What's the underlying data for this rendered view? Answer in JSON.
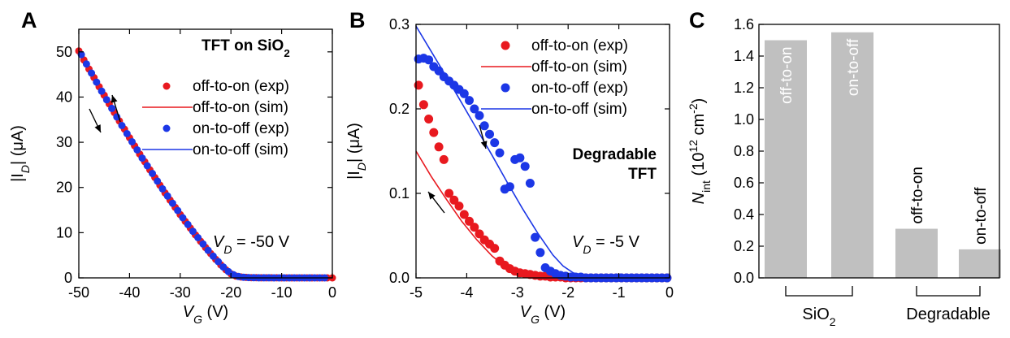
{
  "panel_labels": [
    "A",
    "B",
    "C"
  ],
  "chart_data": [
    {
      "type": "scatter",
      "panel": "A",
      "title_main": "TFT on SiO",
      "title_sub": "2",
      "xlabel_main": "V",
      "xlabel_sub": "G",
      "xlabel_unit": " (V)",
      "ylabel_main": "|I",
      "ylabel_sub": "D",
      "ylabel_unit": "| (μA)",
      "xlim": [
        -50,
        0
      ],
      "ylim": [
        0,
        55
      ],
      "xticks": [
        -50,
        -40,
        -30,
        -20,
        -10,
        0
      ],
      "yticks": [
        0,
        10,
        20,
        30,
        40,
        50
      ],
      "xtick_labels": [
        "-50",
        "-40",
        "-30",
        "-20",
        "-10",
        "0"
      ],
      "ytick_labels": [
        "0",
        "10",
        "20",
        "30",
        "40",
        "50"
      ],
      "annotation_main": "V",
      "annotation_sub": "D",
      "annotation_value": " = -50 V",
      "legend_position": "right",
      "series": [
        {
          "name": "off-to-on (exp)",
          "kind": "points",
          "color": "#e8191f",
          "x": [
            -50,
            -49,
            -48,
            -47,
            -46,
            -45,
            -44,
            -43,
            -42,
            -41,
            -40,
            -39,
            -38,
            -37,
            -36,
            -35,
            -34,
            -33,
            -32,
            -31,
            -30,
            -29,
            -28,
            -27,
            -26,
            -25,
            -24,
            -23,
            -22,
            -21,
            -20,
            -19,
            -18,
            -17,
            -16,
            -15,
            -14,
            -13,
            -12,
            -11,
            -10,
            -9,
            -8,
            -7,
            -6,
            -5,
            -4,
            -3,
            -2,
            -1,
            0
          ],
          "y": [
            50.2,
            48.2,
            46.2,
            44.3,
            42.3,
            40.4,
            38.5,
            36.6,
            34.7,
            32.9,
            31.0,
            29.2,
            27.4,
            25.7,
            23.9,
            22.2,
            20.5,
            18.8,
            17.2,
            15.6,
            14.0,
            12.5,
            11.0,
            9.5,
            8.1,
            6.7,
            5.4,
            4.1,
            2.9,
            1.8,
            0.9,
            0.4,
            0.2,
            0.1,
            0.05,
            0.03,
            0.02,
            0.01,
            0.01,
            0.01,
            0,
            0,
            0,
            0,
            0,
            0,
            0,
            0,
            0,
            0,
            0
          ]
        },
        {
          "name": "off-to-on (sim)",
          "kind": "line",
          "color": "#e8191f",
          "x": [
            -50,
            -47,
            -44,
            -41,
            -38,
            -35,
            -32,
            -29,
            -26,
            -23,
            -21,
            -20,
            -19,
            -18,
            -15,
            -10,
            -5,
            0
          ],
          "y": [
            50.0,
            44.2,
            38.4,
            32.8,
            27.3,
            22.1,
            17.1,
            12.4,
            8.0,
            4.0,
            1.9,
            1.0,
            0.45,
            0.15,
            0.02,
            0,
            0,
            0
          ]
        },
        {
          "name": "on-to-off (exp)",
          "kind": "points",
          "color": "#1c37e6",
          "x": [
            -49.5,
            -48.5,
            -47.5,
            -46.5,
            -45.5,
            -44.5,
            -43.5,
            -42.5,
            -41.5,
            -40.5,
            -39.5,
            -38.5,
            -37.5,
            -36.5,
            -35.5,
            -34.5,
            -33.5,
            -32.5,
            -31.5,
            -30.5,
            -29.5,
            -28.5,
            -27.5,
            -26.5,
            -25.5,
            -24.5,
            -23.5,
            -22.5,
            -21.5,
            -20.5,
            -19.5,
            -18.5,
            -17.5,
            -16.5,
            -15.5,
            -14.5,
            -13.5,
            -12.5,
            -11.5,
            -10.5,
            -9.5,
            -8.5,
            -7.5,
            -6.5,
            -5.5,
            -4.5,
            -3.5,
            -2.5,
            -1.5
          ],
          "y": [
            49.4,
            47.3,
            45.3,
            43.3,
            41.3,
            39.4,
            37.5,
            35.6,
            33.7,
            31.9,
            30.1,
            28.3,
            26.5,
            24.8,
            23.1,
            21.4,
            19.7,
            18.1,
            16.5,
            14.9,
            13.3,
            11.8,
            10.3,
            8.9,
            7.5,
            6.1,
            4.8,
            3.6,
            2.4,
            1.4,
            0.7,
            0.3,
            0.15,
            0.08,
            0.04,
            0.02,
            0.01,
            0.01,
            0,
            0,
            0,
            0,
            0,
            0,
            0,
            0,
            0,
            0,
            0
          ]
        },
        {
          "name": "on-to-off (sim)",
          "kind": "line",
          "color": "#1c37e6",
          "x": [
            -50,
            -47,
            -44,
            -41,
            -38,
            -35,
            -32,
            -29,
            -26,
            -23,
            -21,
            -20,
            -19,
            -18,
            -15,
            -10,
            -5,
            0
          ],
          "y": [
            49.9,
            44.0,
            38.2,
            32.6,
            27.1,
            21.9,
            16.9,
            12.2,
            7.8,
            3.9,
            1.8,
            0.95,
            0.4,
            0.12,
            0.02,
            0,
            0,
            0
          ]
        }
      ]
    },
    {
      "type": "scatter",
      "panel": "B",
      "title": "Degradable",
      "title_line2": "TFT",
      "xlabel_main": "V",
      "xlabel_sub": "G",
      "xlabel_unit": " (V)",
      "ylabel_main": "|I",
      "ylabel_sub": "D",
      "ylabel_unit": "| (μA)",
      "xlim": [
        -5,
        0
      ],
      "ylim": [
        0,
        0.3
      ],
      "xticks": [
        -5,
        -4,
        -3,
        -2,
        -1,
        0
      ],
      "yticks": [
        0,
        0.1,
        0.2,
        0.3
      ],
      "xtick_labels": [
        "-5",
        "-4",
        "-3",
        "-2",
        "-1",
        "0"
      ],
      "ytick_labels": [
        "0.0",
        "0.1",
        "0.2",
        "0.3"
      ],
      "annotation_main": "V",
      "annotation_sub": "D",
      "annotation_value": " = -5 V",
      "legend_position": "top-right",
      "series": [
        {
          "name": "off-to-on (exp)",
          "kind": "points",
          "color": "#e8191f",
          "x": [
            -4.95,
            -4.85,
            -4.75,
            -4.65,
            -4.55,
            -4.45,
            -4.35,
            -4.25,
            -4.15,
            -4.05,
            -3.95,
            -3.85,
            -3.75,
            -3.65,
            -3.55,
            -3.45,
            -3.35,
            -3.25,
            -3.15,
            -3.05,
            -2.95,
            -2.85,
            -2.75,
            -2.65,
            -2.55,
            -2.45,
            -2.35,
            -2.25,
            -2.15,
            -2.05,
            -1.95,
            -1.85,
            -1.75,
            -1.65,
            -1.55,
            -1.45,
            -1.35,
            -1.25,
            -1.15,
            -1.05,
            -0.95,
            -0.85,
            -0.75,
            -0.65,
            -0.55,
            -0.45,
            -0.35,
            -0.25,
            -0.15,
            -0.05
          ],
          "y": [
            0.228,
            0.205,
            0.188,
            0.172,
            0.155,
            0.14,
            0.1,
            0.092,
            0.085,
            0.075,
            0.067,
            0.06,
            0.052,
            0.045,
            0.04,
            0.035,
            0.02,
            0.015,
            0.011,
            0.008,
            0.006,
            0.005,
            0.004,
            0.003,
            0.002,
            0.002,
            0.001,
            0.001,
            0.001,
            0,
            0,
            0,
            0,
            0,
            0,
            0,
            0,
            0,
            0,
            0,
            0,
            0,
            0,
            0,
            0,
            0,
            0,
            0,
            0,
            0
          ]
        },
        {
          "name": "off-to-on (sim)",
          "kind": "line",
          "color": "#e8191f",
          "x": [
            -5.0,
            -4.7,
            -4.4,
            -4.1,
            -3.8,
            -3.5,
            -3.3,
            -3.1,
            -2.9,
            -2.7,
            -2.5,
            -2.2,
            -1.8,
            -1.4,
            -1.0,
            -0.5,
            0
          ],
          "y": [
            0.15,
            0.12,
            0.093,
            0.067,
            0.045,
            0.026,
            0.016,
            0.009,
            0.005,
            0.003,
            0.0015,
            0.0008,
            0.0003,
            0.0001,
            0,
            0,
            0
          ]
        },
        {
          "name": "on-to-off (exp)",
          "kind": "points",
          "color": "#1c37e6",
          "x": [
            -4.95,
            -4.85,
            -4.75,
            -4.65,
            -4.55,
            -4.45,
            -4.35,
            -4.25,
            -4.15,
            -4.05,
            -3.95,
            -3.85,
            -3.75,
            -3.65,
            -3.55,
            -3.45,
            -3.35,
            -3.25,
            -3.15,
            -3.05,
            -2.95,
            -2.85,
            -2.75,
            -2.65,
            -2.55,
            -2.45,
            -2.35,
            -2.25,
            -2.15,
            -2.05,
            -1.95,
            -1.85,
            -1.75,
            -1.65,
            -1.55,
            -1.45,
            -1.35,
            -1.25,
            -1.15,
            -1.05,
            -0.95,
            -0.85,
            -0.75,
            -0.65,
            -0.55,
            -0.45,
            -0.35,
            -0.25,
            -0.15,
            -0.05
          ],
          "y": [
            0.259,
            0.26,
            0.258,
            0.25,
            0.245,
            0.238,
            0.233,
            0.228,
            0.223,
            0.218,
            0.21,
            0.2,
            0.192,
            0.18,
            0.17,
            0.16,
            0.148,
            0.105,
            0.108,
            0.14,
            0.142,
            0.132,
            0.112,
            0.048,
            0.03,
            0.012,
            0.008,
            0.005,
            0.003,
            0.002,
            0.001,
            0.001,
            0.001,
            0,
            0,
            0,
            0,
            0,
            0,
            0,
            0,
            0,
            0,
            0,
            0,
            0,
            0,
            0,
            0,
            0
          ]
        },
        {
          "name": "on-to-off (sim)",
          "kind": "line",
          "color": "#1c37e6",
          "x": [
            -5.0,
            -4.7,
            -4.4,
            -4.1,
            -3.8,
            -3.5,
            -3.2,
            -2.9,
            -2.6,
            -2.3,
            -2.1,
            -1.9,
            -1.7,
            -1.5,
            -1.3,
            -1.0,
            -0.5,
            0
          ],
          "y": [
            0.298,
            0.268,
            0.238,
            0.207,
            0.176,
            0.145,
            0.113,
            0.082,
            0.053,
            0.027,
            0.014,
            0.006,
            0.002,
            0.0008,
            0.0002,
            0,
            0,
            0
          ]
        }
      ]
    },
    {
      "type": "bar",
      "panel": "C",
      "categories": [
        "off-to-on",
        "on-to-off",
        "off-to-on",
        "on-to-off"
      ],
      "values": [
        1.5,
        1.55,
        0.31,
        0.18
      ],
      "groups": [
        {
          "label": "SiO",
          "label_sub": "2",
          "members": [
            0,
            1
          ]
        },
        {
          "label": "Degradable",
          "members": [
            2,
            3
          ]
        }
      ],
      "ylabel_main": "N",
      "ylabel_sub": "int",
      "ylabel_unit_pre": " (10",
      "ylabel_unit_sup": "12",
      "ylabel_unit_mid": " cm",
      "ylabel_unit_sup2": "-2",
      "ylabel_unit_post": ")",
      "ylim": [
        0,
        1.6
      ],
      "yticks": [
        0,
        0.2,
        0.4,
        0.6,
        0.8,
        1.0,
        1.2,
        1.4,
        1.6
      ],
      "ytick_labels": [
        "0.0",
        "0.2",
        "0.4",
        "0.6",
        "0.8",
        "1.0",
        "1.2",
        "1.4",
        "1.6"
      ],
      "bar_color": "#c0c0c0"
    }
  ]
}
